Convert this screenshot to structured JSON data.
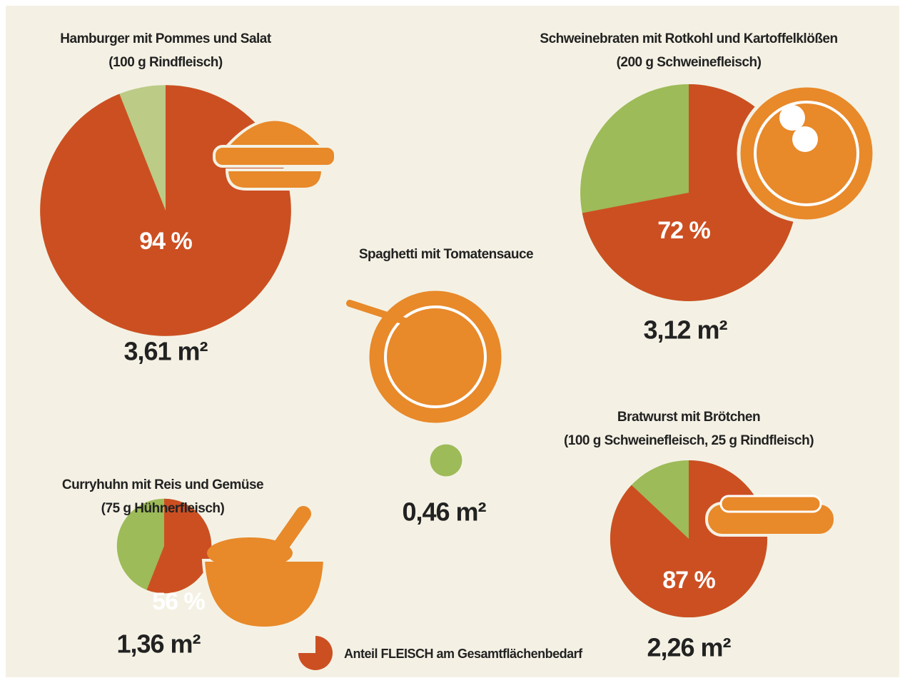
{
  "chart_data": [
    {
      "type": "pie",
      "title": "Hamburger mit Pommes und Salat",
      "subtitle": "(100 g Rindfleisch)",
      "values": [
        94
      ],
      "value_labels": [
        "94 %"
      ],
      "total": 3.61,
      "total_label": "3,61 m²",
      "colors": [
        "#cc4f22",
        "#bccb85"
      ]
    },
    {
      "type": "pie",
      "title": "Schweinebraten mit Rotkohl und Kartoffelklößen",
      "subtitle": "(200 g Schweinefleisch)",
      "values": [
        72
      ],
      "value_labels": [
        "72 %"
      ],
      "total": 3.12,
      "total_label": "3,12 m²",
      "colors": [
        "#cc4f22",
        "#9dbb58"
      ]
    },
    {
      "type": "pie",
      "title": "Spaghetti mit Tomatensauce",
      "total": 0.46,
      "total_label": "0,46 m²",
      "colors": [
        "#cc4f22",
        "#9dbb58"
      ]
    },
    {
      "type": "pie",
      "title": "Curryhuhn mit Reis und Gemüse",
      "subtitle": "(75 g Hühnerfleisch)",
      "values": [
        56
      ],
      "value_labels": [
        "56 %"
      ],
      "total": 1.36,
      "total_label": "1,36 m²",
      "colors": [
        "#cc4f22",
        "#9dbb58"
      ]
    },
    {
      "type": "pie",
      "title": "Bratwurst mit Brötchen",
      "subtitle": "(100 g Schweinefleisch, 25 g Rindfleisch)",
      "values": [
        87
      ],
      "value_labels": [
        "87 %"
      ],
      "total": 2.26,
      "total_label": "2,26 m²",
      "colors": [
        "#cc4f22",
        "#9dbb58"
      ]
    }
  ],
  "legend": {
    "label": "Anteil FLEISCH am Gesamtflächenbedarf",
    "color": "#cc4f22"
  }
}
